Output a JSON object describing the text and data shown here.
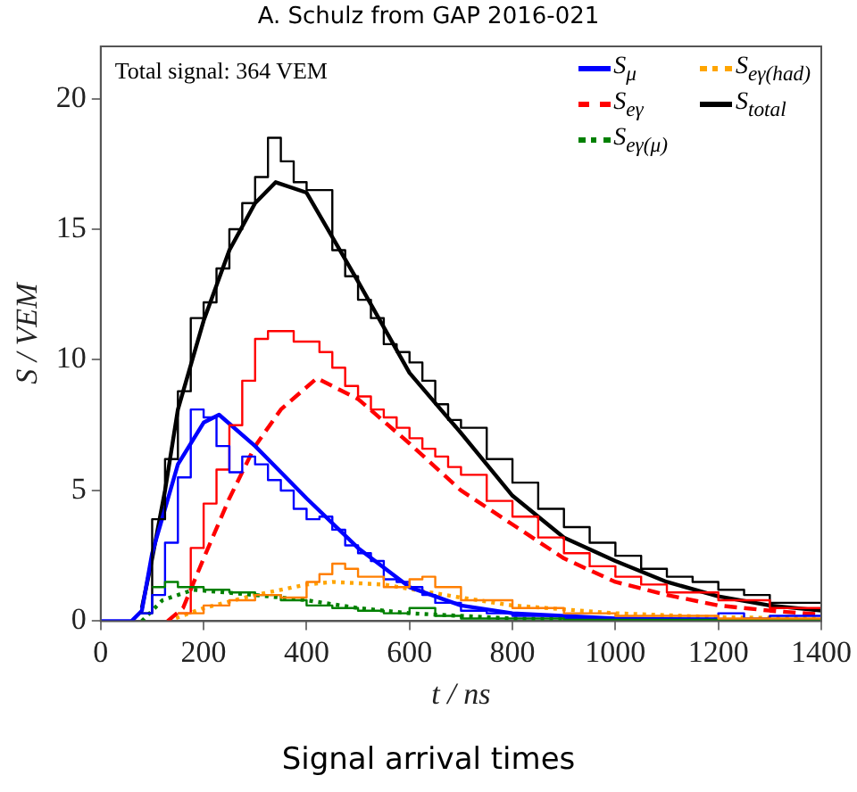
{
  "chart_data": {
    "type": "line",
    "title": "A. Schulz from GAP 2016-021",
    "xlabel": "t / ns",
    "ylabel": "S / VEM",
    "annotations": [
      "Total signal: 364 VEM",
      "Signal arrival times"
    ],
    "xlim": [
      0,
      1400
    ],
    "xticks": [
      0,
      200,
      400,
      600,
      800,
      1000,
      1200,
      1400
    ],
    "ylim": [
      0,
      22
    ],
    "yticks": [
      0,
      5,
      10,
      15,
      20
    ],
    "grid": false,
    "legend": "top right",
    "series": [
      {
        "type": "step",
        "color": "#ff7f00",
        "x": [
          150,
          200,
          250,
          300,
          350,
          400,
          425,
          450,
          475,
          500,
          550,
          600,
          625,
          650,
          700,
          800,
          900,
          1000,
          1200,
          1400
        ],
        "values": [
          0.3,
          0.6,
          0.8,
          1.0,
          0.9,
          1.5,
          1.8,
          2.2,
          2.0,
          1.7,
          1.3,
          1.6,
          1.7,
          1.3,
          0.8,
          0.5,
          0.3,
          0.2,
          0.1,
          0.1
        ]
      },
      {
        "type": "step",
        "color": "#008000",
        "x": [
          100,
          125,
          150,
          200,
          250,
          300,
          350,
          400,
          450,
          500,
          550,
          600,
          650,
          700,
          800,
          900,
          1000,
          1400
        ],
        "values": [
          1.3,
          1.5,
          1.3,
          1.2,
          1.1,
          1.0,
          0.8,
          0.6,
          0.5,
          0.4,
          0.3,
          0.5,
          0.2,
          0.1,
          0.1,
          0.05,
          0.05,
          0.05
        ]
      },
      {
        "type": "step",
        "color": "#0000ff",
        "x": [
          75,
          100,
          125,
          150,
          175,
          200,
          225,
          250,
          275,
          300,
          325,
          350,
          375,
          400,
          425,
          450,
          475,
          500,
          525,
          550,
          575,
          600,
          625,
          650,
          700,
          750,
          800,
          900,
          1000,
          1100,
          1200,
          1250,
          1300,
          1400
        ],
        "values": [
          0.3,
          1.0,
          3.0,
          5.5,
          8.1,
          7.8,
          6.7,
          5.7,
          6.3,
          6.0,
          5.4,
          5.0,
          4.3,
          3.9,
          4.0,
          3.5,
          2.9,
          2.6,
          2.3,
          1.6,
          1.5,
          1.3,
          1.0,
          0.7,
          0.4,
          0.3,
          0.2,
          0.1,
          0.1,
          0.1,
          0.3,
          0.1,
          0.2,
          0.2
        ]
      },
      {
        "type": "step",
        "color": "#ff0000",
        "x": [
          150,
          175,
          200,
          225,
          250,
          275,
          300,
          325,
          375,
          425,
          450,
          475,
          500,
          525,
          550,
          575,
          600,
          625,
          650,
          675,
          700,
          750,
          800,
          850,
          900,
          950,
          1000,
          1050,
          1100,
          1200,
          1300,
          1400
        ],
        "values": [
          0.3,
          2.8,
          4.5,
          5.8,
          7.5,
          9.2,
          10.8,
          11.1,
          10.7,
          10.3,
          9.7,
          9.0,
          8.6,
          8.1,
          7.8,
          7.4,
          7.0,
          6.6,
          6.3,
          5.9,
          5.6,
          4.6,
          4.0,
          3.2,
          2.6,
          2.1,
          1.7,
          1.4,
          1.1,
          0.8,
          0.5,
          0.5
        ]
      },
      {
        "type": "step",
        "color": "#000000",
        "x": [
          75,
          100,
          125,
          150,
          175,
          200,
          225,
          250,
          275,
          300,
          325,
          350,
          375,
          400,
          450,
          475,
          500,
          525,
          550,
          575,
          600,
          625,
          650,
          675,
          700,
          750,
          800,
          850,
          900,
          950,
          1000,
          1050,
          1100,
          1150,
          1200,
          1250,
          1300,
          1400
        ],
        "values": [
          0.3,
          3.9,
          6.2,
          8.8,
          11.6,
          12.2,
          13.5,
          15.0,
          16.0,
          17.0,
          18.5,
          17.6,
          16.8,
          16.5,
          14.2,
          13.2,
          12.3,
          11.6,
          10.6,
          10.3,
          9.9,
          9.2,
          8.3,
          7.7,
          7.4,
          6.2,
          5.3,
          4.3,
          3.6,
          3.0,
          2.5,
          2.0,
          1.7,
          1.5,
          1.2,
          1.0,
          0.7,
          0.7
        ]
      },
      {
        "name": "S$_{μ}$",
        "color": "#0000ff",
        "line_style": "solid",
        "x": [
          0,
          60,
          80,
          100,
          150,
          200,
          230,
          300,
          400,
          500,
          600,
          700,
          800,
          1000,
          1400
        ],
        "values": [
          0,
          0,
          0.4,
          2.6,
          6.0,
          7.6,
          7.9,
          6.7,
          4.7,
          2.8,
          1.3,
          0.6,
          0.3,
          0.1,
          0
        ]
      },
      {
        "name": "S$_{eγ}$",
        "color": "#ff0000",
        "line_style": "dashed",
        "x": [
          130,
          160,
          200,
          250,
          300,
          350,
          420,
          500,
          600,
          700,
          800,
          900,
          1000,
          1100,
          1200,
          1300,
          1400
        ],
        "values": [
          0,
          0.5,
          2.4,
          4.7,
          6.7,
          8.1,
          9.3,
          8.5,
          6.8,
          5.0,
          3.7,
          2.4,
          1.5,
          1.0,
          0.6,
          0.4,
          0.25
        ]
      },
      {
        "name": "S$_{eγ(μ)}$",
        "color": "#008000",
        "line_style": "dotted",
        "x": [
          80,
          120,
          180,
          300,
          400,
          500,
          600,
          800,
          1000,
          1400
        ],
        "values": [
          0,
          0.8,
          1.2,
          1.0,
          0.8,
          0.5,
          0.3,
          0.1,
          0.05,
          0
        ]
      },
      {
        "name": "S$_{eγ(had)}$",
        "color": "#ffa500",
        "line_style": "dotted",
        "x": [
          130,
          200,
          300,
          400,
          450,
          550,
          700,
          800,
          1000,
          1200,
          1400
        ],
        "values": [
          0,
          0.5,
          1.0,
          1.4,
          1.5,
          1.4,
          0.9,
          0.6,
          0.3,
          0.15,
          0.1
        ]
      },
      {
        "name": "S$_{total}$",
        "color": "#000000",
        "line_style": "solid",
        "x": [
          80,
          100,
          125,
          150,
          200,
          250,
          300,
          340,
          400,
          500,
          600,
          700,
          800,
          900,
          1000,
          1100,
          1200,
          1300,
          1400
        ],
        "values": [
          0.5,
          2.4,
          5,
          8.1,
          11.5,
          14.2,
          16.0,
          16.8,
          16.4,
          13.0,
          9.5,
          7.2,
          4.8,
          3.2,
          2.3,
          1.5,
          0.95,
          0.6,
          0.4
        ]
      }
    ]
  }
}
